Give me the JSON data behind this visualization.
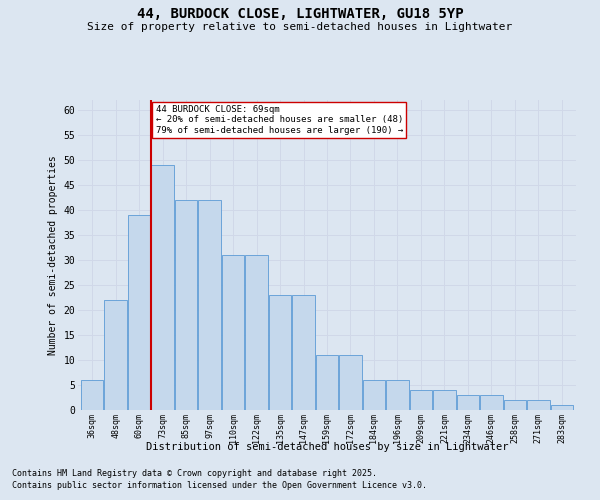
{
  "title": "44, BURDOCK CLOSE, LIGHTWATER, GU18 5YP",
  "subtitle": "Size of property relative to semi-detached houses in Lightwater",
  "xlabel": "Distribution of semi-detached houses by size in Lightwater",
  "ylabel": "Number of semi-detached properties",
  "bar_labels": [
    "36sqm",
    "48sqm",
    "60sqm",
    "73sqm",
    "85sqm",
    "97sqm",
    "110sqm",
    "122sqm",
    "135sqm",
    "147sqm",
    "159sqm",
    "172sqm",
    "184sqm",
    "196sqm",
    "209sqm",
    "221sqm",
    "234sqm",
    "246sqm",
    "258sqm",
    "271sqm",
    "283sqm"
  ],
  "bar_values": [
    6,
    22,
    39,
    49,
    42,
    42,
    31,
    31,
    23,
    23,
    11,
    11,
    6,
    6,
    4,
    4,
    3,
    3,
    2,
    2,
    1
  ],
  "bar_color": "#c5d8ec",
  "bar_edge_color": "#5b9bd5",
  "pct_smaller": 20,
  "pct_smaller_n": 48,
  "pct_larger": 79,
  "pct_larger_n": 190,
  "vline_color": "#cc0000",
  "annotation_box_color": "#cc0000",
  "grid_color": "#d0d8e8",
  "bg_color": "#dce6f1",
  "ylim": [
    0,
    62
  ],
  "yticks": [
    0,
    5,
    10,
    15,
    20,
    25,
    30,
    35,
    40,
    45,
    50,
    55,
    60
  ],
  "footnote1": "Contains HM Land Registry data © Crown copyright and database right 2025.",
  "footnote2": "Contains public sector information licensed under the Open Government Licence v3.0."
}
